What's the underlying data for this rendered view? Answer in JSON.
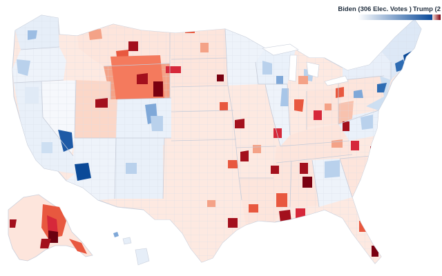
{
  "legend": {
    "biden_label": "Biden (306 Elec. Votes )",
    "trump_label": "Trump (2",
    "biden_color_light": "#ffffff",
    "biden_color_dark": "#0a4a9a",
    "trump_color_light": "#fde5dc",
    "trump_color_dark": "#7a0010"
  },
  "colors": {
    "background": "#ffffff",
    "county_border": "#d8dbe6",
    "state_border": "#c9cfdb",
    "lean_dem": "#e6eef8",
    "mid_dem": "#b9d1ec",
    "strong_dem": "#2e6cb3",
    "solid_dem": "#0b4a98",
    "lean_rep": "#fde9e1",
    "mid_rep": "#f8b9a4",
    "strong_rep": "#e8583f",
    "solid_rep": "#a3101d",
    "darkest_rep": "#6b0010",
    "water": "#ffffff"
  }
}
